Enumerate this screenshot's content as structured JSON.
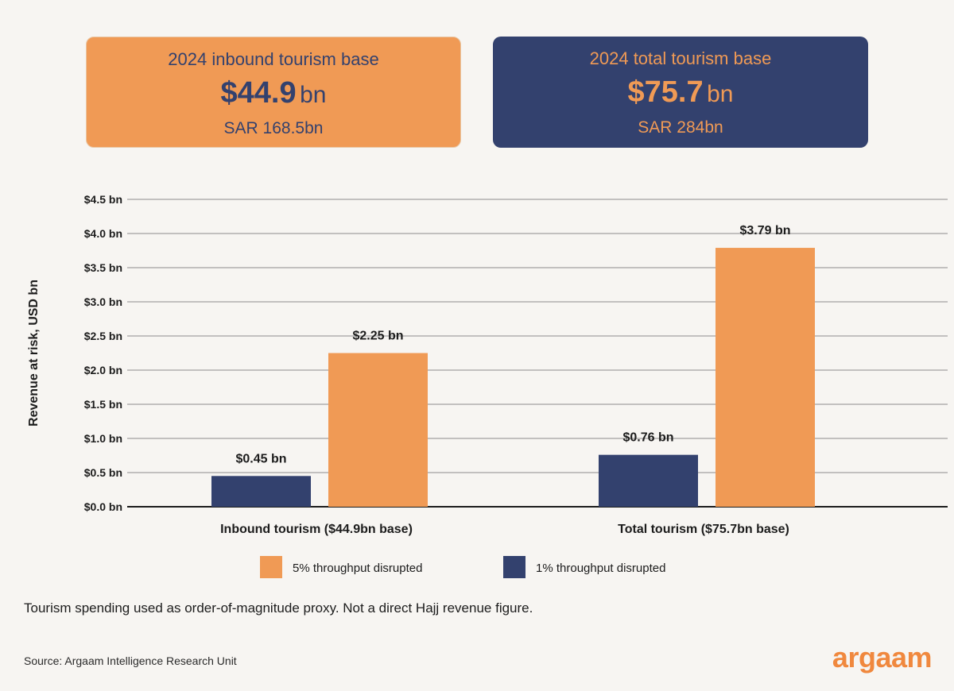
{
  "cards": [
    {
      "title": "2024 inbound tourism base",
      "value": "$44.9",
      "unit": "bn",
      "sub": "SAR 168.5bn"
    },
    {
      "title": "2024 total tourism base",
      "value": "$75.7",
      "unit": "bn",
      "sub": "SAR 284bn"
    }
  ],
  "chart_data": {
    "type": "bar",
    "ylabel": "Revenue at risk, USD bn",
    "ylim": [
      0,
      4.5
    ],
    "y_ticks": [
      {
        "value": 0.0,
        "label": "$0.0 bn"
      },
      {
        "value": 0.5,
        "label": "$0.5 bn"
      },
      {
        "value": 1.0,
        "label": "$1.0 bn"
      },
      {
        "value": 1.5,
        "label": "$1.5 bn"
      },
      {
        "value": 2.0,
        "label": "$2.0 bn"
      },
      {
        "value": 2.5,
        "label": "$2.5 bn"
      },
      {
        "value": 3.0,
        "label": "$3.0 bn"
      },
      {
        "value": 3.5,
        "label": "$3.5 bn"
      },
      {
        "value": 4.0,
        "label": "$4.0 bn"
      },
      {
        "value": 4.5,
        "label": "$4.5 bn"
      }
    ],
    "categories": [
      "Inbound tourism ($44.9bn base)",
      "Total tourism ($75.7bn base)"
    ],
    "series": [
      {
        "name": "1% throughput disrupted",
        "color": "#33416e",
        "values": [
          0.45,
          0.76
        ],
        "labels": [
          "$0.45 bn",
          "$0.76 bn"
        ]
      },
      {
        "name": "5% throughput disrupted",
        "color": "#f09a55",
        "values": [
          2.25,
          3.79
        ],
        "labels": [
          "$2.25 bn",
          "$3.79 bn"
        ]
      }
    ],
    "legend": [
      "5% throughput disrupted",
      "1% throughput disrupted"
    ],
    "legend_position": "bottom",
    "grid": true
  },
  "note": "Tourism spending used as order-of-magnitude proxy. Not a direct Hajj revenue figure.",
  "source": "Source: Argaam Intelligence Research Unit",
  "logo": "argaam"
}
